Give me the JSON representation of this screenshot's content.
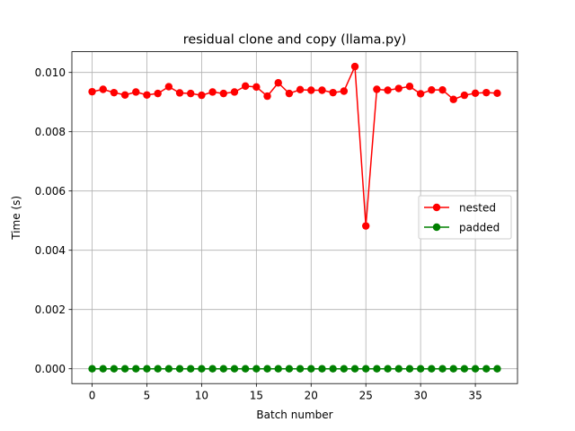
{
  "chart_data": {
    "type": "line",
    "title": "residual clone and copy (llama.py)",
    "xlabel": "Batch number",
    "ylabel": "Time (s)",
    "xlim": [
      -1.85,
      38.85
    ],
    "ylim": [
      -0.0005,
      0.0107
    ],
    "x_ticks": [
      0,
      5,
      10,
      15,
      20,
      25,
      30,
      35
    ],
    "x_tick_labels": [
      "0",
      "5",
      "10",
      "15",
      "20",
      "25",
      "30",
      "35"
    ],
    "y_ticks": [
      0.0,
      0.002,
      0.004,
      0.006,
      0.008,
      0.01
    ],
    "y_tick_labels": [
      "0.000",
      "0.002",
      "0.004",
      "0.006",
      "0.008",
      "0.010"
    ],
    "grid": true,
    "legend_position": "center-right",
    "x": [
      0,
      1,
      2,
      3,
      4,
      5,
      6,
      7,
      8,
      9,
      10,
      11,
      12,
      13,
      14,
      15,
      16,
      17,
      18,
      19,
      20,
      21,
      22,
      23,
      24,
      25,
      26,
      27,
      28,
      29,
      30,
      31,
      32,
      33,
      34,
      35,
      36,
      37
    ],
    "series": [
      {
        "name": "nested",
        "color": "#ff0000",
        "marker": "circle",
        "values": [
          0.00935,
          0.00943,
          0.00932,
          0.00924,
          0.00934,
          0.00924,
          0.00929,
          0.00952,
          0.00931,
          0.00929,
          0.00923,
          0.00934,
          0.00929,
          0.00934,
          0.00954,
          0.00951,
          0.0092,
          0.00965,
          0.00929,
          0.00942,
          0.0094,
          0.0094,
          0.00932,
          0.00937,
          0.0102,
          0.00482,
          0.00943,
          0.0094,
          0.00946,
          0.00953,
          0.00928,
          0.00941,
          0.00941,
          0.00909,
          0.00923,
          0.0093,
          0.00932,
          0.0093
        ]
      },
      {
        "name": "padded",
        "color": "#008000",
        "marker": "circle",
        "values": [
          0,
          0,
          0,
          0,
          0,
          0,
          0,
          0,
          0,
          0,
          0,
          0,
          0,
          0,
          0,
          0,
          0,
          0,
          0,
          0,
          0,
          0,
          0,
          0,
          0,
          0,
          0,
          0,
          0,
          0,
          0,
          0,
          0,
          0,
          0,
          0,
          0,
          0
        ]
      }
    ]
  }
}
